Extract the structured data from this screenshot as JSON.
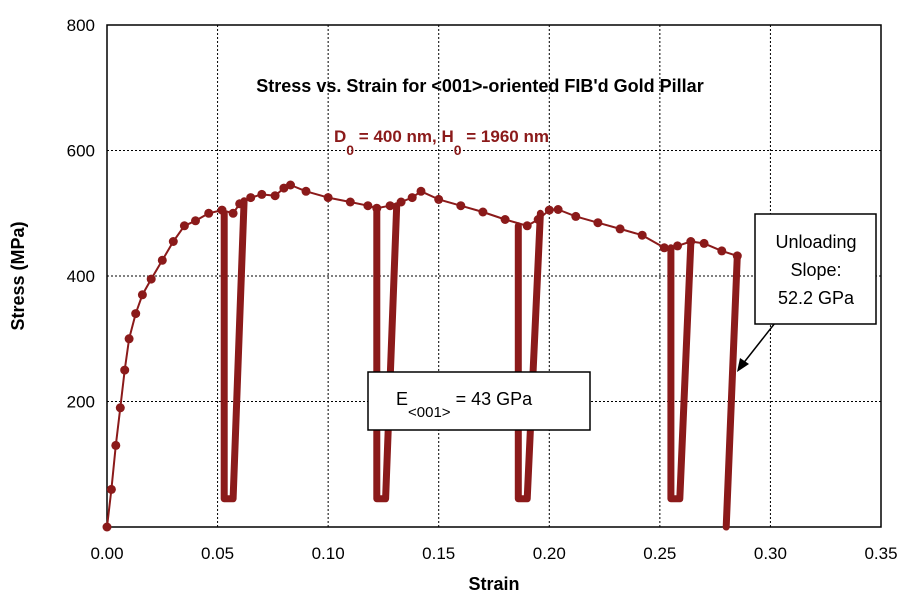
{
  "chart_data": {
    "type": "line",
    "title": "Stress vs. Strain for <001>-oriented FIB'd Gold Pillar",
    "subtitle": {
      "parts": [
        "D",
        "0",
        " = 400 nm, H",
        "0",
        " = 1960 nm"
      ]
    },
    "xlabel": "Strain",
    "ylabel": "Stress (MPa)",
    "xlim": [
      0.0,
      0.35
    ],
    "ylim": [
      0,
      800
    ],
    "x_ticks": [
      "0.00",
      "0.05",
      "0.10",
      "0.15",
      "0.20",
      "0.25",
      "0.30",
      "0.35"
    ],
    "y_ticks": [
      "",
      "200",
      "400",
      "600",
      "800"
    ],
    "grid": true,
    "series_color": "#8b1a1a",
    "annotations": {
      "modulus": {
        "base": "E",
        "subscript": "<001>",
        "rest": " = 43 GPa"
      },
      "unloading": [
        "Unloading",
        "Slope:",
        "52.2 GPa"
      ]
    },
    "series": [
      {
        "points": [
          [
            0.0,
            0
          ],
          [
            0.002,
            60
          ],
          [
            0.004,
            130
          ],
          [
            0.006,
            190
          ],
          [
            0.008,
            250
          ],
          [
            0.01,
            300
          ],
          [
            0.013,
            340
          ],
          [
            0.016,
            370
          ],
          [
            0.02,
            395
          ],
          [
            0.025,
            425
          ],
          [
            0.03,
            455
          ],
          [
            0.035,
            480
          ],
          [
            0.04,
            488
          ],
          [
            0.046,
            500
          ],
          [
            0.052,
            505
          ],
          [
            0.057,
            500
          ],
          [
            0.06,
            515
          ],
          [
            0.065,
            525
          ],
          [
            0.07,
            530
          ],
          [
            0.076,
            528
          ],
          [
            0.08,
            540
          ],
          [
            0.083,
            545
          ],
          [
            0.09,
            535
          ],
          [
            0.1,
            525
          ],
          [
            0.11,
            518
          ],
          [
            0.118,
            512
          ],
          [
            0.122,
            508
          ],
          [
            0.128,
            512
          ],
          [
            0.133,
            518
          ],
          [
            0.138,
            525
          ],
          [
            0.142,
            535
          ],
          [
            0.15,
            522
          ],
          [
            0.16,
            512
          ],
          [
            0.17,
            502
          ],
          [
            0.18,
            490
          ],
          [
            0.19,
            480
          ],
          [
            0.195,
            490
          ],
          [
            0.2,
            505
          ],
          [
            0.204,
            506
          ],
          [
            0.212,
            495
          ],
          [
            0.222,
            485
          ],
          [
            0.232,
            475
          ],
          [
            0.242,
            465
          ],
          [
            0.252,
            445
          ],
          [
            0.258,
            448
          ],
          [
            0.264,
            455
          ],
          [
            0.27,
            452
          ],
          [
            0.278,
            440
          ],
          [
            0.285,
            432
          ]
        ]
      },
      {
        "points": [
          [
            0.053,
            500
          ],
          [
            0.053,
            45
          ],
          [
            0.057,
            45
          ],
          [
            0.062,
            520
          ]
        ]
      },
      {
        "points": [
          [
            0.122,
            508
          ],
          [
            0.122,
            45
          ],
          [
            0.126,
            45
          ],
          [
            0.131,
            512
          ]
        ]
      },
      {
        "points": [
          [
            0.186,
            480
          ],
          [
            0.186,
            45
          ],
          [
            0.19,
            45
          ],
          [
            0.196,
            500
          ]
        ]
      },
      {
        "points": [
          [
            0.255,
            445
          ],
          [
            0.255,
            45
          ],
          [
            0.259,
            45
          ],
          [
            0.264,
            452
          ]
        ]
      },
      {
        "points": [
          [
            0.285,
            432
          ],
          [
            0.28,
            0
          ]
        ]
      }
    ]
  }
}
